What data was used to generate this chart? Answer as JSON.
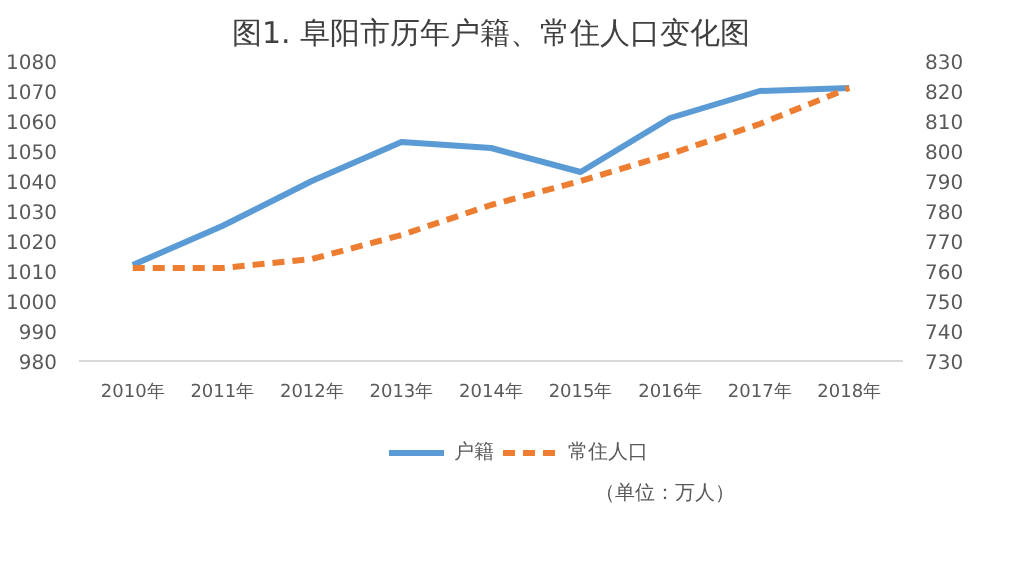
{
  "chart_data": {
    "type": "line",
    "title": "图1. 阜阳市历年户籍、常住人口变化图",
    "categories": [
      "2010年",
      "2011年",
      "2012年",
      "2013年",
      "2014年",
      "2015年",
      "2016年",
      "2017年",
      "2018年"
    ],
    "series": [
      {
        "name": "户籍",
        "color": "#5b9bd5",
        "line_style": "solid",
        "values": [
          1012,
          1025,
          1040,
          1053,
          1051,
          1043,
          1061,
          1070,
          1071
        ]
      },
      {
        "name": "常住人口",
        "color": "#ed7d31",
        "line_style": "dashed",
        "axis": "y2",
        "values": [
          761,
          761,
          764,
          772,
          782,
          790,
          799,
          809,
          821
        ]
      }
    ],
    "ylim": [
      980,
      1080
    ],
    "yticks": [
      980,
      990,
      1000,
      1010,
      1020,
      1030,
      1040,
      1050,
      1060,
      1070,
      1080
    ],
    "y2lim": [
      730,
      830
    ],
    "y2ticks": [
      730,
      740,
      750,
      760,
      770,
      780,
      790,
      800,
      810,
      820,
      830
    ],
    "grid": false,
    "legend": "bottom",
    "marker": "none",
    "annotations": [
      "（单位：万人）"
    ]
  }
}
